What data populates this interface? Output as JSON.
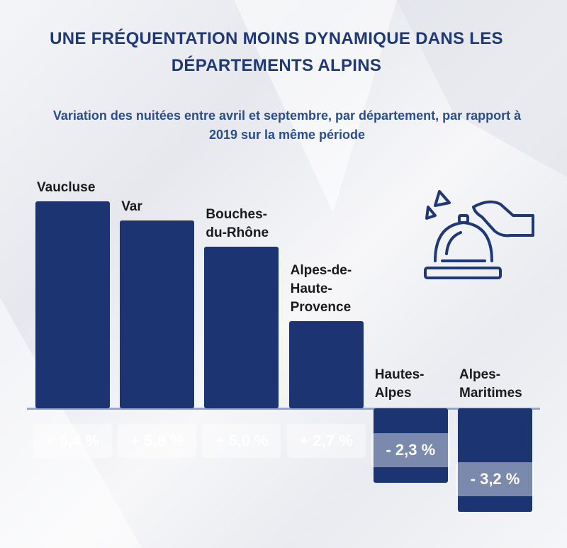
{
  "chart_data": {
    "type": "bar",
    "title": "UNE FRÉQUENTATION MOINS DYNAMIQUE DANS LES DÉPARTEMENTS ALPINS",
    "subtitle": "Variation des nuitées entre avril et septembre, par département, par rapport à 2019 sur la même période",
    "categories": [
      "Vaucluse",
      "Var",
      "Bouches-du-Rhône",
      "Alpes-de-Haute-Provence",
      "Hautes-Alpes",
      "Alpes-Maritimes"
    ],
    "values": [
      6.4,
      5.8,
      5.0,
      2.7,
      -2.3,
      -3.2
    ],
    "value_labels": [
      "+ 6,4 %",
      "+ 5,8 %",
      "+ 5,0 %",
      "+ 2,7 %",
      "- 2,3 %",
      "- 3,2 %"
    ],
    "color": "#1d3473"
  }
}
